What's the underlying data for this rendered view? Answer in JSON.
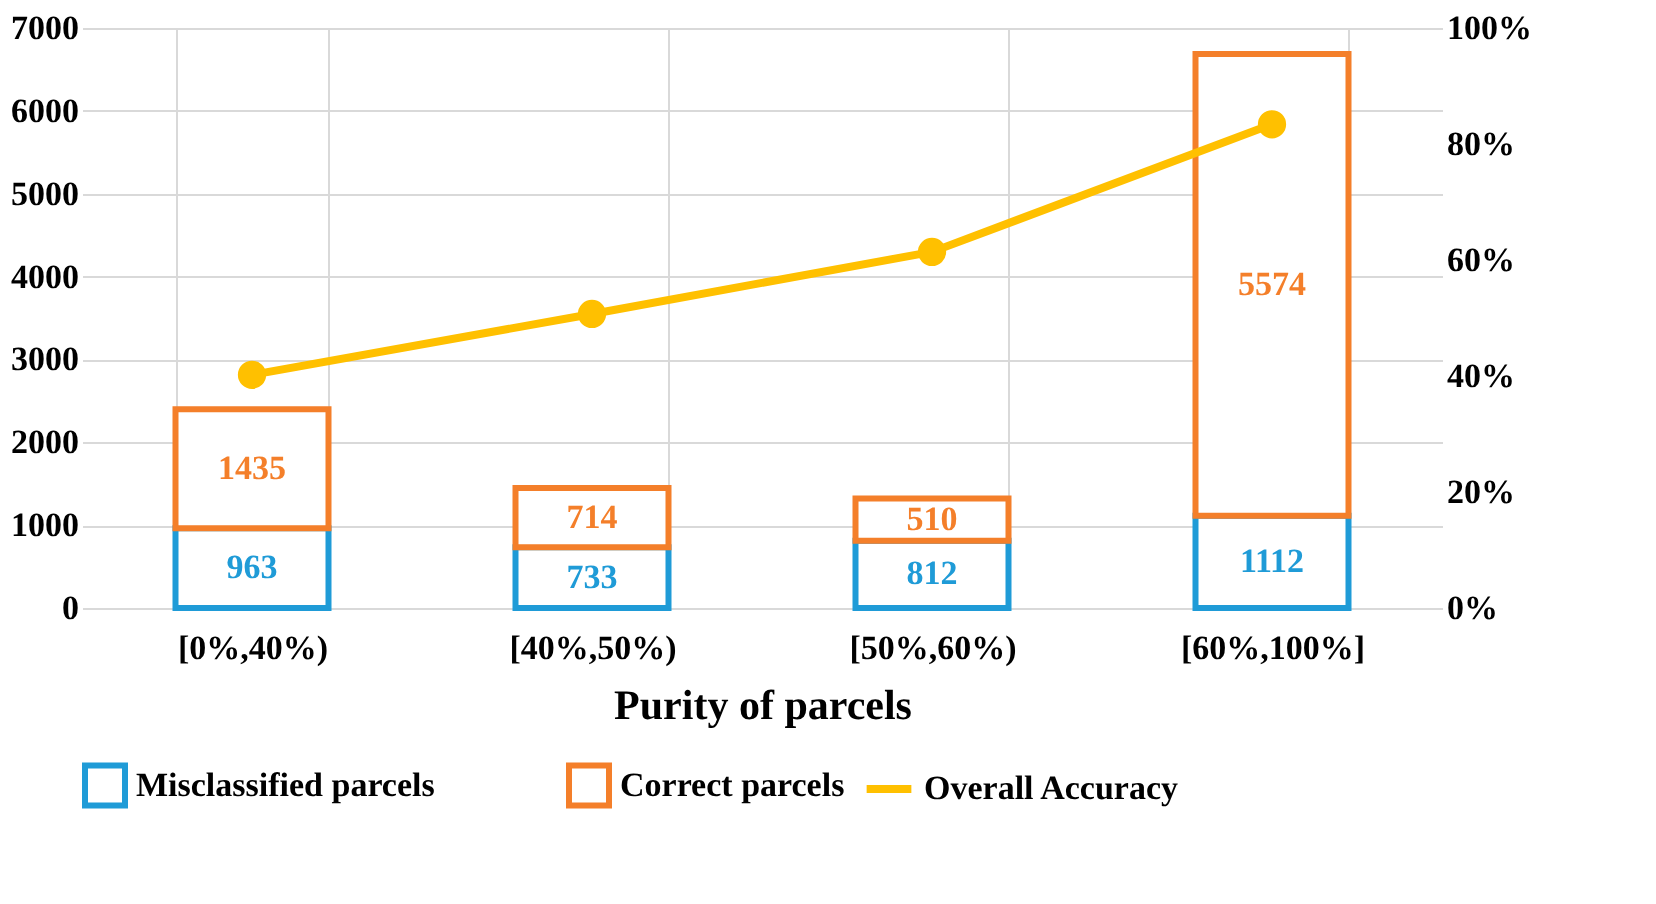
{
  "chart_data": {
    "type": "bar",
    "stacked": true,
    "xlabel": "Purity of parcels",
    "categories": [
      "[0%,40%)",
      "[40%,50%)",
      "[50%,60%)",
      "[60%,100%]"
    ],
    "series": [
      {
        "name": "Misclassified parcels",
        "color": "#1f9bd7",
        "values": [
          963,
          733,
          812,
          1112
        ],
        "value_labels": [
          "963",
          "733",
          "812",
          "1112"
        ]
      },
      {
        "name": "Correct parcels",
        "color": "#f47f2a",
        "values": [
          1435,
          714,
          510,
          5574
        ],
        "value_labels": [
          "1435",
          "714",
          "510",
          "5574"
        ]
      },
      {
        "name": "Overall Accuracy",
        "type": "line",
        "axis": "y2",
        "color": "#ffc000",
        "values": [
          40.2,
          50.7,
          61.4,
          83.4
        ]
      }
    ],
    "ylim": [
      0,
      7000
    ],
    "yticks": [
      0,
      1000,
      2000,
      3000,
      4000,
      5000,
      6000,
      7000
    ],
    "y2lim": [
      0,
      100
    ],
    "y2ticks": [
      {
        "value": 0,
        "label": "0%"
      },
      {
        "value": 20,
        "label": "20%"
      },
      {
        "value": 40,
        "label": "40%"
      },
      {
        "value": 60,
        "label": "60%"
      },
      {
        "value": 80,
        "label": "80%"
      },
      {
        "value": 100,
        "label": "100%"
      }
    ],
    "grid": true,
    "legend": "bottom",
    "marker": "circle",
    "line_style": "solid"
  }
}
